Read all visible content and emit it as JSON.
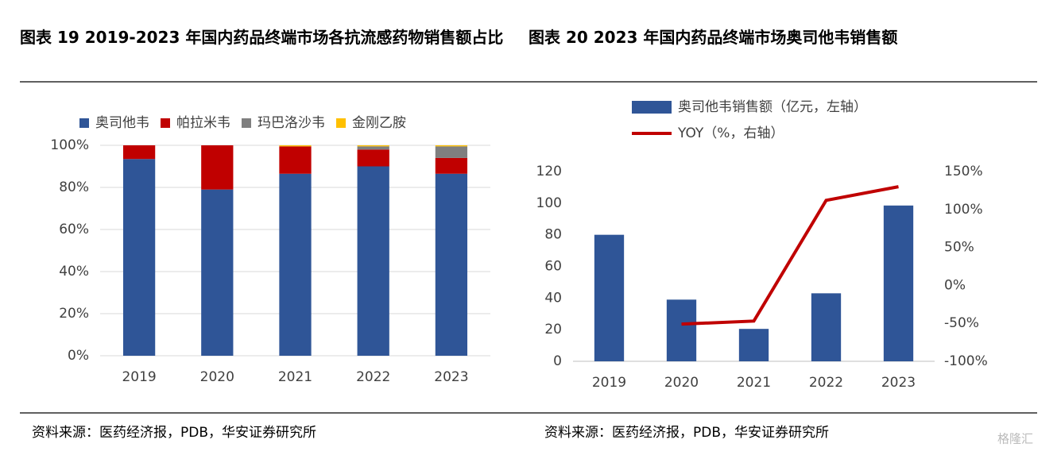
{
  "watermark": "格隆汇",
  "chart_data": [
    {
      "type": "bar",
      "stacked": true,
      "title": "图表 19 2019-2023 年国内药品终端市场各抗流感药物销售额占比",
      "source": "资料来源：医药经济报，PDB，华安证券研究所",
      "categories": [
        "2019",
        "2020",
        "2021",
        "2022",
        "2023"
      ],
      "series": [
        {
          "name": "奥司他韦",
          "color": "#2f5597",
          "values": [
            93.5,
            79,
            86.5,
            90,
            86.5
          ]
        },
        {
          "name": "帕拉米韦",
          "color": "#c00000",
          "values": [
            6.5,
            21,
            13,
            8,
            7.5
          ]
        },
        {
          "name": "玛巴洛沙韦",
          "color": "#7f7f7f",
          "values": [
            0,
            0,
            0,
            1.5,
            5.5
          ]
        },
        {
          "name": "金刚乙胺",
          "color": "#ffc000",
          "values": [
            0,
            0,
            0.5,
            0.5,
            0.5
          ]
        }
      ],
      "ylim": [
        0,
        100
      ],
      "yticks": [
        {
          "value": 0,
          "label": "0%"
        },
        {
          "value": 20,
          "label": "20%"
        },
        {
          "value": 40,
          "label": "40%"
        },
        {
          "value": 60,
          "label": "60%"
        },
        {
          "value": 80,
          "label": "80%"
        },
        {
          "value": 100,
          "label": "100%"
        }
      ],
      "grid": true,
      "legend": "top"
    },
    {
      "type": "bar",
      "title": "图表 20 2023 年国内药品终端市场奥司他韦销售额",
      "source": "资料来源：医药经济报，PDB，华安证券研究所",
      "categories": [
        "2019",
        "2020",
        "2021",
        "2022",
        "2023"
      ],
      "series": [
        {
          "name": "奥司他韦销售额（亿元，左轴）",
          "color": "#2f5597",
          "values": [
            80,
            39,
            20.5,
            43,
            98.5
          ]
        },
        {
          "name": "YOY（%，右轴）",
          "color": "#c00000",
          "type": "line",
          "axis": "y2",
          "values": [
            null,
            -51,
            -47,
            112,
            130
          ]
        }
      ],
      "ylim": [
        0,
        120
      ],
      "yticks": [
        0,
        20,
        40,
        60,
        80,
        100,
        120
      ],
      "y2lim": [
        -100,
        150
      ],
      "y2ticks": [
        {
          "value": -100,
          "label": "-100%"
        },
        {
          "value": -50,
          "label": "-50%"
        },
        {
          "value": 0,
          "label": "0%"
        },
        {
          "value": 50,
          "label": "50%"
        },
        {
          "value": 100,
          "label": "100%"
        },
        {
          "value": 150,
          "label": "150%"
        }
      ],
      "grid": false,
      "legend": "top"
    }
  ]
}
